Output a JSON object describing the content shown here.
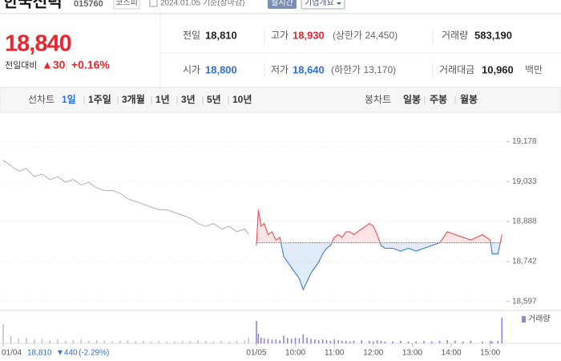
{
  "header": {
    "name": "한국전력",
    "code": "015760",
    "market": "코스피",
    "date": "2024.01.05 기준(장마감)",
    "realtime": "실시간",
    "company_info": "기업개요"
  },
  "quote": {
    "price": "18,840",
    "change_label": "전일대비",
    "change": "▲30",
    "rate": "+0.16%",
    "color": "#e8262e"
  },
  "stats": [
    {
      "label": "전일",
      "value": "18,810",
      "color": "#222222"
    },
    {
      "label": "고가",
      "value": "18,930",
      "note": "(상한가 24,450)",
      "color": "#e8262e"
    },
    {
      "label": "거래량",
      "value": "583,190",
      "color": "#222222"
    },
    {
      "label": "시가",
      "value": "18,800",
      "color": "#2f6fd6"
    },
    {
      "label": "저가",
      "value": "18,640",
      "note": "(하한가 13,170)",
      "color": "#2f6fd6"
    },
    {
      "label": "거래대금",
      "value": "10,960",
      "note": "백만",
      "color": "#222222"
    }
  ],
  "tabs": {
    "line_label": "선차트",
    "line_periods": [
      "1일",
      "1주일",
      "3개월",
      "1년",
      "3년",
      "5년",
      "10년"
    ],
    "selected_line_period": 0,
    "candle_label": "봉차트",
    "candle_periods": [
      "일봉",
      "주봉",
      "월봉"
    ]
  },
  "chart_data": {
    "type": "line",
    "xlim": [
      -0.08,
      13.0
    ],
    "xticks": [
      {
        "value": 0,
        "label": "01/04"
      },
      {
        "value": 6.5,
        "label": "01/05"
      },
      {
        "value": 7.5,
        "label": "10:00"
      },
      {
        "value": 8.5,
        "label": "11:00"
      },
      {
        "value": 9.5,
        "label": "12:00"
      },
      {
        "value": 10.5,
        "label": "13:00"
      },
      {
        "value": 11.5,
        "label": "14:00"
      },
      {
        "value": 12.5,
        "label": "15:00"
      }
    ],
    "ylim": [
      18570,
      19255
    ],
    "yticks": [
      {
        "value": 19178,
        "label": "19,178"
      },
      {
        "value": 19033,
        "label": "19,033"
      },
      {
        "value": 18888,
        "label": "18,888"
      },
      {
        "value": 18742,
        "label": "18,742"
      },
      {
        "value": 18597,
        "label": "18,597"
      }
    ],
    "grid": true,
    "baseline": 18810,
    "volume_name": "거래량",
    "vlim": [
      0,
      45000
    ],
    "series": [
      {
        "color": "#b0b0b0",
        "volume_color": "#c4c4c4",
        "x": [
          0,
          0.2,
          0.4,
          0.6,
          0.8,
          1.0,
          1.2,
          1.4,
          1.6,
          1.8,
          2.0,
          2.2,
          2.4,
          2.6,
          2.8,
          3.0,
          3.2,
          3.4,
          3.6,
          3.8,
          4.0,
          4.2,
          4.4,
          4.6,
          4.8,
          5.0,
          5.2,
          5.4,
          5.6,
          5.8,
          6.0,
          6.2,
          6.3
        ],
        "values": [
          19110,
          19090,
          19070,
          19080,
          19050,
          19060,
          19040,
          19050,
          19030,
          19040,
          19020,
          19030,
          19010,
          19000,
          19000,
          18990,
          18970,
          18960,
          18950,
          18940,
          18930,
          18930,
          18920,
          18910,
          18900,
          18880,
          18870,
          18880,
          18860,
          18870,
          18850,
          18860,
          18840
        ],
        "volume": [
          30000,
          12000,
          8000,
          9000,
          6000,
          7000,
          5000,
          6000,
          4000,
          5000,
          6000,
          4000,
          5000,
          4000,
          3000,
          4000,
          5000,
          3000,
          4000,
          3000,
          4000,
          3000,
          3000,
          4000,
          3000,
          5000,
          4000,
          3000,
          4000,
          3000,
          4000,
          5000,
          9000
        ]
      },
      {
        "color_up": "#ef4a4f",
        "color_down": "#3d7bd8",
        "volume_color": "#9582d8",
        "x": [
          6.5,
          6.55,
          6.62,
          6.7,
          6.8,
          6.9,
          7.0,
          7.1,
          7.2,
          7.3,
          7.4,
          7.5,
          7.6,
          7.7,
          7.8,
          7.9,
          8.0,
          8.1,
          8.2,
          8.3,
          8.4,
          8.5,
          8.6,
          8.7,
          8.8,
          8.9,
          9.0,
          9.2,
          9.4,
          9.5,
          9.6,
          9.7,
          9.8,
          10.0,
          10.2,
          10.4,
          10.6,
          10.8,
          11.0,
          11.2,
          11.4,
          11.6,
          11.8,
          12.0,
          12.3,
          12.5,
          12.55,
          12.7,
          12.8
        ],
        "values": [
          18800,
          18930,
          18870,
          18880,
          18840,
          18850,
          18820,
          18830,
          18760,
          18740,
          18720,
          18700,
          18680,
          18640,
          18670,
          18700,
          18720,
          18740,
          18770,
          18790,
          18800,
          18830,
          18840,
          18830,
          18850,
          18850,
          18840,
          18860,
          18880,
          18870,
          18840,
          18800,
          18790,
          18790,
          18780,
          18790,
          18780,
          18790,
          18800,
          18810,
          18850,
          18840,
          18830,
          18820,
          18840,
          18820,
          18770,
          18770,
          18840
        ],
        "volume": [
          35000,
          15000,
          9000,
          8000,
          7000,
          6000,
          6000,
          5000,
          12000,
          8000,
          7000,
          9000,
          8000,
          14000,
          9000,
          7000,
          6000,
          5000,
          6000,
          5000,
          4000,
          6000,
          5000,
          4000,
          4000,
          3000,
          4000,
          5000,
          4000,
          3000,
          5000,
          4000,
          3000,
          3000,
          4000,
          3000,
          3000,
          4000,
          3000,
          4000,
          5000,
          4000,
          3000,
          4000,
          3000,
          4000,
          3000,
          4000,
          40000
        ]
      }
    ]
  },
  "footer": {
    "price": "18,810",
    "change": "▼440",
    "rate": "(-2.29%)",
    "color": "#2f6fd6"
  }
}
